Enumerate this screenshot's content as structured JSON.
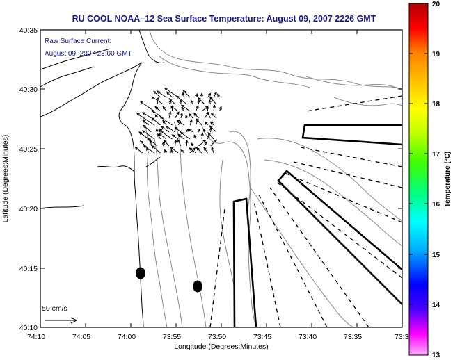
{
  "title": "RU COOL  NOAA–12  Sea Surface Temperature:  August 09, 2007 2226 GMT",
  "annotation": {
    "line1": "Raw Surface Current:",
    "line2": "August 09, 2007 23:00 GMT"
  },
  "scale": {
    "label": "50 cm/s"
  },
  "axes": {
    "xlabel": "Longitude (Degrees:Minutes)",
    "ylabel": "Latitude (Degrees:Minutes)",
    "xticks": [
      "74:10",
      "74:05",
      "74:00",
      "73:55",
      "73:50",
      "73:45",
      "73:40",
      "73:35",
      "73:3"
    ],
    "yticks": [
      "40:35",
      "40:30",
      "40:25",
      "40:20",
      "40:15",
      "40:10"
    ]
  },
  "colorbar": {
    "label": "Temperature (°C)",
    "ticks": [
      "20",
      "19",
      "18",
      "17",
      "16",
      "15",
      "14",
      "13"
    ],
    "range": [
      13,
      20
    ],
    "colors": [
      "#ff00ff",
      "#4b00ff",
      "#0000ff",
      "#00b0ff",
      "#00ffff",
      "#00ff80",
      "#40ff00",
      "#c0ff00",
      "#ffff00",
      "#ffc000",
      "#ff8000",
      "#ff0000",
      "#c00000"
    ]
  },
  "colors": {
    "title": "#1a1a8c",
    "lines": "#000000",
    "contour": "#888888"
  }
}
